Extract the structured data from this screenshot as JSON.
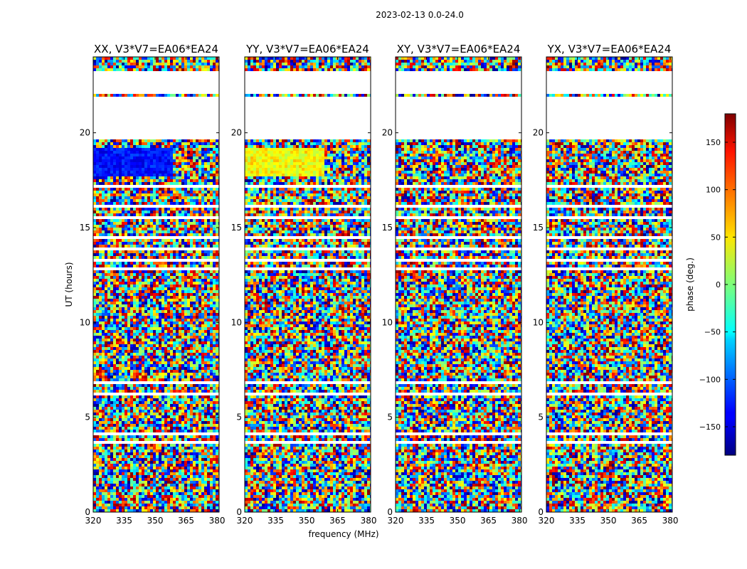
{
  "chart_data": {
    "type": "heatmap",
    "suptitle": "2023-02-13 0.0-24.0",
    "xlabel": "frequency (MHz)",
    "ylabel": "UT (hours)",
    "xlim": [
      320,
      381
    ],
    "ylim": [
      0,
      24
    ],
    "xticks": [
      320,
      335,
      350,
      365,
      380
    ],
    "yticks": [
      0,
      5,
      10,
      15,
      20
    ],
    "panels": [
      {
        "title": "XX, V3*V7=EA06*EA24",
        "polarization": "XX"
      },
      {
        "title": "YY, V3*V7=EA06*EA24",
        "polarization": "YY"
      },
      {
        "title": "XY, V3*V7=EA06*EA24",
        "polarization": "XY"
      },
      {
        "title": "YX, V3*V7=EA06*EA24",
        "polarization": "YX"
      }
    ],
    "colorbar": {
      "label": "phase (deg.)",
      "range": [
        -180,
        180
      ],
      "ticks": [
        150,
        100,
        50,
        0,
        -50,
        -100,
        -150
      ],
      "tick_labels": [
        "150",
        "100",
        "50",
        "0",
        "−50",
        "−100",
        "−150"
      ],
      "colormap": "jet"
    },
    "data_gaps_ut": [
      [
        19.7,
        21.9
      ],
      [
        22.1,
        23.3
      ]
    ]
  }
}
